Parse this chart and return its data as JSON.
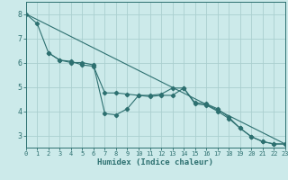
{
  "xlabel": "Humidex (Indice chaleur)",
  "bg_color": "#cceaea",
  "grid_color": "#aacfcf",
  "line_color": "#2d7070",
  "xlim": [
    0,
    23
  ],
  "ylim": [
    2.5,
    8.5
  ],
  "yticks": [
    3,
    4,
    5,
    6,
    7,
    8
  ],
  "xticks": [
    0,
    1,
    2,
    3,
    4,
    5,
    6,
    7,
    8,
    9,
    10,
    11,
    12,
    13,
    14,
    15,
    16,
    17,
    18,
    19,
    20,
    21,
    22,
    23
  ],
  "line1_x": [
    0,
    1,
    2,
    3,
    4,
    5,
    6,
    7,
    8,
    9,
    10,
    11,
    12,
    13,
    14,
    15,
    16,
    17,
    18,
    19,
    20,
    21,
    22,
    23
  ],
  "line1_y": [
    8.0,
    7.6,
    6.4,
    6.1,
    6.05,
    5.9,
    5.85,
    4.75,
    4.75,
    4.7,
    4.65,
    4.65,
    4.7,
    4.95,
    4.95,
    4.35,
    4.3,
    4.1,
    3.75,
    3.3,
    2.95,
    2.75,
    2.65,
    2.65
  ],
  "line2_x": [
    2,
    3,
    4,
    5,
    6,
    7,
    8,
    9,
    10,
    11,
    12,
    13,
    14,
    15,
    16,
    17,
    18,
    19,
    20,
    21,
    22,
    23
  ],
  "line2_y": [
    6.4,
    6.1,
    6.0,
    6.0,
    5.9,
    3.9,
    3.85,
    4.1,
    4.65,
    4.6,
    4.65,
    4.65,
    4.95,
    4.3,
    4.25,
    4.0,
    3.7,
    3.3,
    2.95,
    2.75,
    2.65,
    2.65
  ],
  "line3_x": [
    0,
    23
  ],
  "line3_y": [
    8.0,
    2.65
  ]
}
